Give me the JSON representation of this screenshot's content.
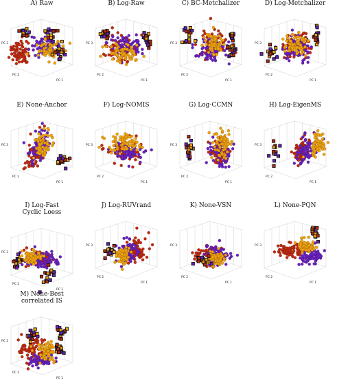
{
  "chart_data": [
    {
      "type": "scatter",
      "title": "A) Raw",
      "xlabel": "PC 1",
      "ylabel": "PC 2",
      "zlabel": "PC 3"
    },
    {
      "type": "scatter",
      "title": "B) Log-Raw",
      "xlabel": "PC 1",
      "ylabel": "PC 2",
      "zlabel": "PC 3"
    },
    {
      "type": "scatter",
      "title": "C) BC-Metchalizer",
      "xlabel": "PC 1",
      "ylabel": "PC 2",
      "zlabel": "PC 3"
    },
    {
      "type": "scatter",
      "title": "D) Log-Metchalizer",
      "xlabel": "PC 1",
      "ylabel": "PC 2",
      "zlabel": "PC 3"
    },
    {
      "type": "scatter",
      "title": "E) None-Anchor",
      "xlabel": "PC 1",
      "ylabel": "PC 2",
      "zlabel": "PC 3"
    },
    {
      "type": "scatter",
      "title": "F) Log-NOMIS",
      "xlabel": "PC 1",
      "ylabel": "PC 2",
      "zlabel": "PC 3"
    },
    {
      "type": "scatter",
      "title": "G) Log-CCMN",
      "xlabel": "PC 1",
      "ylabel": "PC 2",
      "zlabel": "PC 3"
    },
    {
      "type": "scatter",
      "title": "H) Log-EigenMS",
      "xlabel": "PC 1",
      "ylabel": "PC 2",
      "zlabel": "PC 3"
    },
    {
      "type": "scatter",
      "title": "I) Log-Fast\nCyclic Loess",
      "xlabel": "PC 1",
      "ylabel": "PC 2",
      "zlabel": "PC 3"
    },
    {
      "type": "scatter",
      "title": "J) Log-RUVrand",
      "xlabel": "PC 1",
      "ylabel": "PC 2",
      "zlabel": "PC 3"
    },
    {
      "type": "scatter",
      "title": "K) None-VSN",
      "xlabel": "PC 1",
      "ylabel": "PC 2",
      "zlabel": "PC 3"
    },
    {
      "type": "scatter",
      "title": "L) None-PQN",
      "xlabel": "PC 1",
      "ylabel": "PC 2",
      "zlabel": "PC 3"
    },
    {
      "type": "scatter",
      "title": "M) None-Best\ncorrelated IS",
      "xlabel": "PC 1",
      "ylabel": "PC 2",
      "zlabel": "PC 3"
    }
  ],
  "colors": {
    "group1": "#c0290e",
    "group2": "#6a1fc2",
    "group3": "#f0a20c",
    "marker_outline": "#111111",
    "box_edge": "#cfcfcf"
  }
}
